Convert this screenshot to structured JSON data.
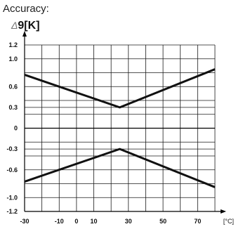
{
  "title": "Accuracy:",
  "ylabel_symbol": "Δ",
  "ylabel_text": "9[K]",
  "chart_data": {
    "type": "line",
    "title": "Accuracy:",
    "ylabel": "Δ9[K]",
    "xlabel": "[°C]",
    "x_ticks": [
      -30,
      -10,
      0,
      10,
      30,
      50,
      70
    ],
    "x_tick_labels": [
      "-30",
      "-10",
      "0",
      "10",
      "30",
      "50",
      "70"
    ],
    "y_ticks": [
      1.2,
      1.0,
      0.6,
      0.3,
      0,
      -0.3,
      -0.6,
      -1.0,
      -1.2
    ],
    "y_tick_labels": [
      "1.2",
      "1.0",
      "0.6",
      "0.3",
      "0",
      "-0.3",
      "-0.6",
      "-1.0",
      "-1.2"
    ],
    "xlim": [
      -30,
      80
    ],
    "ylim": [
      -1.2,
      1.2
    ],
    "grid": true,
    "series": [
      {
        "x": [
          -30,
          25,
          80
        ],
        "y": [
          0.77,
          0.3,
          0.85
        ]
      },
      {
        "x": [
          -30,
          25,
          80
        ],
        "y": [
          -0.77,
          -0.3,
          -0.85
        ]
      }
    ]
  }
}
